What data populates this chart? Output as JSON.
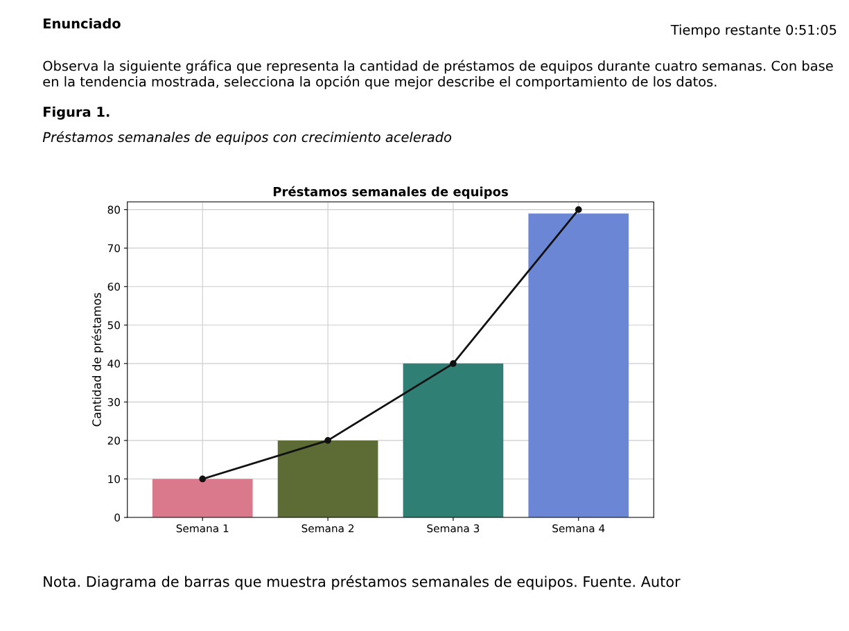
{
  "chart_data": {
    "type": "bar",
    "title": "Préstamos semanales de equipos",
    "ylabel": "Cantidad de préstamos",
    "categories": [
      "Semana 1",
      "Semana 2",
      "Semana 3",
      "Semana 4"
    ],
    "series": [
      {
        "colors": [
          "#d9798b",
          "#5d6b35",
          "#2f7f74",
          "#6c86d6"
        ],
        "values": [
          10,
          20,
          40,
          79
        ]
      },
      {
        "type": "line",
        "color": "#111111",
        "marker": "circle",
        "line_style": "solid",
        "values": [
          10,
          20,
          40,
          80
        ]
      }
    ],
    "ylim": [
      0,
      82
    ],
    "yticks": [
      0,
      10,
      20,
      30,
      40,
      50,
      60,
      70,
      80
    ],
    "grid": true,
    "legend": false,
    "annotations": [
      "Enunciado",
      "Tiempo restante 0:51:05",
      "Observa la siguiente gráfica que representa la cantidad de préstamos de equipos durante cuatro semanas. Con base en la tendencia mostrada, selecciona la opción que mejor describe el comportamiento de los datos.",
      "Figura 1.",
      "Préstamos semanales de equipos con crecimiento acelerado",
      "Nota. Diagrama de barras que muestra préstamos semanales de equipos. Fuente. Autor"
    ]
  }
}
